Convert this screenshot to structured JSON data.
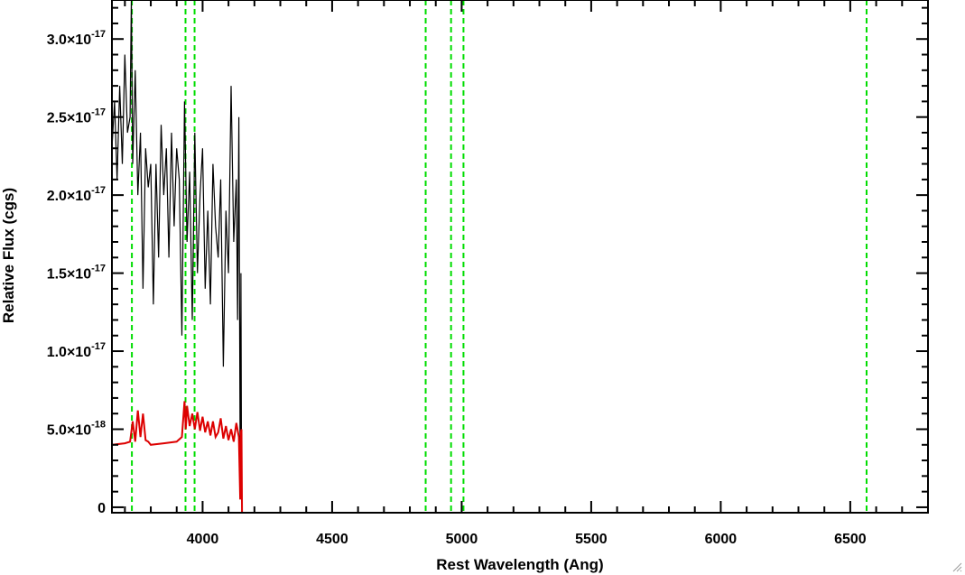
{
  "chart_data": {
    "type": "line",
    "title": "",
    "xlabel": "Rest Wavelength (Ang)",
    "ylabel": "Relative Flux (cgs)",
    "xlim": [
      3650,
      6800
    ],
    "ylim": [
      -3.5e-19,
      3.25e-17
    ],
    "grid": false,
    "x_ticks": [
      {
        "value": 4000,
        "label": "4000"
      },
      {
        "value": 4500,
        "label": "4500"
      },
      {
        "value": 5000,
        "label": "5000"
      },
      {
        "value": 5500,
        "label": "5500"
      },
      {
        "value": 6000,
        "label": "6000"
      },
      {
        "value": 6500,
        "label": "6500"
      }
    ],
    "y_ticks": [
      {
        "value": 0,
        "mantissa": "0",
        "exponent": ""
      },
      {
        "value": 5e-18,
        "mantissa": "5.0×10",
        "exponent": "-18"
      },
      {
        "value": 1e-17,
        "mantissa": "1.0×10",
        "exponent": "-17"
      },
      {
        "value": 1.5e-17,
        "mantissa": "1.5×10",
        "exponent": "-17"
      },
      {
        "value": 2e-17,
        "mantissa": "2.0×10",
        "exponent": "-17"
      },
      {
        "value": 2.5e-17,
        "mantissa": "2.5×10",
        "exponent": "-17"
      },
      {
        "value": 3e-17,
        "mantissa": "3.0×10",
        "exponent": "-17"
      }
    ],
    "series": [
      {
        "color": "#000000",
        "x": [
          3650,
          3660,
          3670,
          3680,
          3690,
          3700,
          3710,
          3720,
          3725,
          3730,
          3740,
          3750,
          3760,
          3770,
          3780,
          3790,
          3800,
          3810,
          3820,
          3830,
          3840,
          3850,
          3860,
          3870,
          3880,
          3890,
          3900,
          3910,
          3920,
          3930,
          3940,
          3950,
          3960,
          3970,
          3980,
          3990,
          4000,
          4010,
          4020,
          4030,
          4040,
          4050,
          4060,
          4070,
          4080,
          4090,
          4100,
          4110,
          4120,
          4130,
          4135,
          4140,
          4145,
          4148,
          4150
        ],
        "y": [
          2.3e-17,
          2.6e-17,
          2.1e-17,
          2.7e-17,
          2.2e-17,
          2.9e-17,
          2.4e-17,
          2.5e-17,
          3.25e-17,
          2.2e-17,
          2.8e-17,
          2e-17,
          2.4e-17,
          1.4e-17,
          2.3e-17,
          2.05e-17,
          2.2e-17,
          1.3e-17,
          2.2e-17,
          1.6e-17,
          2.45e-17,
          2e-17,
          2.3e-17,
          1.6e-17,
          2.4e-17,
          1.8e-17,
          2.3e-17,
          2.1e-17,
          1.1e-17,
          2.6e-17,
          1.7e-17,
          2.15e-17,
          1.2e-17,
          2.4e-17,
          1.5e-17,
          2e-17,
          2.3e-17,
          1.4e-17,
          1.9e-17,
          1.3e-17,
          2.2e-17,
          1.8e-17,
          1.6e-17,
          2.1e-17,
          9e-18,
          1.9e-17,
          1.5e-17,
          2.7e-17,
          1.7e-17,
          2.1e-17,
          1.2e-17,
          2.5e-17,
          2e-18,
          1.5e-17,
          3e-18
        ]
      },
      {
        "color": "#dd0000",
        "x": [
          3650,
          3700,
          3720,
          3730,
          3740,
          3750,
          3760,
          3770,
          3780,
          3790,
          3800,
          3850,
          3900,
          3920,
          3930,
          3935,
          3940,
          3950,
          3960,
          3970,
          3980,
          3990,
          4000,
          4010,
          4020,
          4030,
          4040,
          4050,
          4060,
          4070,
          4080,
          4090,
          4100,
          4110,
          4120,
          4130,
          4140,
          4145,
          4148,
          4150,
          4152,
          4153,
          4160,
          5940
        ],
        "y": [
          4e-18,
          4.1e-18,
          4.2e-18,
          5.5e-18,
          4.2e-18,
          6.2e-18,
          4.5e-18,
          6e-18,
          4.3e-18,
          4.2e-18,
          4e-18,
          4.1e-18,
          4.2e-18,
          4.5e-18,
          6.8e-18,
          5e-18,
          6.5e-18,
          5.2e-18,
          6e-18,
          5e-18,
          6.1e-18,
          4.9e-18,
          5.8e-18,
          4.8e-18,
          5.5e-18,
          4.6e-18,
          5.5e-18,
          4.5e-18,
          4.8e-18,
          5.7e-18,
          4.4e-18,
          5.2e-18,
          4.3e-18,
          5e-18,
          4.2e-18,
          5.4e-18,
          4.5e-18,
          5e-19,
          4.8e-18,
          5e-18,
          -3.5e-19,
          -3.5e-19,
          -3.5e-19,
          -3.5e-19
        ]
      }
    ],
    "vertical_lines": [
      {
        "x": 3727,
        "color": "#00dd00",
        "style": "dashed"
      },
      {
        "x": 3934,
        "color": "#00dd00",
        "style": "dashed"
      },
      {
        "x": 3969,
        "color": "#00dd00",
        "style": "dashed"
      },
      {
        "x": 4861,
        "color": "#00dd00",
        "style": "dashed"
      },
      {
        "x": 4959,
        "color": "#00dd00",
        "style": "dashed"
      },
      {
        "x": 5007,
        "color": "#00dd00",
        "style": "dashed"
      },
      {
        "x": 6563,
        "color": "#00dd00",
        "style": "dashed"
      }
    ]
  }
}
